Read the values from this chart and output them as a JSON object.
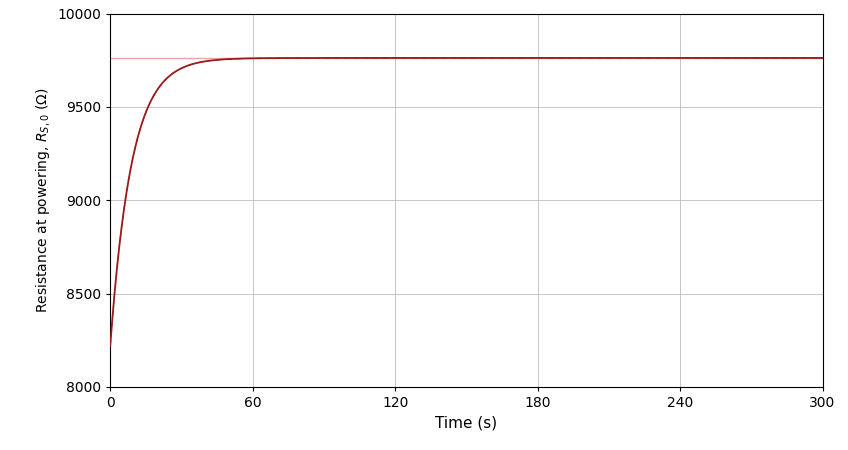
{
  "title": "",
  "xlabel": "Time (s)",
  "ylabel": "Resistance at powering, $R_{S,0}$ ($\\Omega$)",
  "xlim": [
    0,
    300
  ],
  "ylim": [
    8000,
    10000
  ],
  "xticks": [
    0,
    60,
    120,
    180,
    240,
    300
  ],
  "yticks": [
    8000,
    8500,
    9000,
    9500,
    10000
  ],
  "R_inf": 9762,
  "R_0": 8220,
  "tau": 9.0,
  "asymptote_value": 9762,
  "curve_color": "#9B1B1B",
  "asymptote_color": "#E8A8A8",
  "background_color": "#ffffff",
  "grid_color": "#bbbbbb",
  "linewidth_curve": 1.3,
  "linewidth_asymptote": 1.0,
  "figsize": [
    8.48,
    4.5
  ],
  "dpi": 100,
  "xlabel_fontsize": 11,
  "ylabel_fontsize": 10,
  "tick_fontsize": 10
}
